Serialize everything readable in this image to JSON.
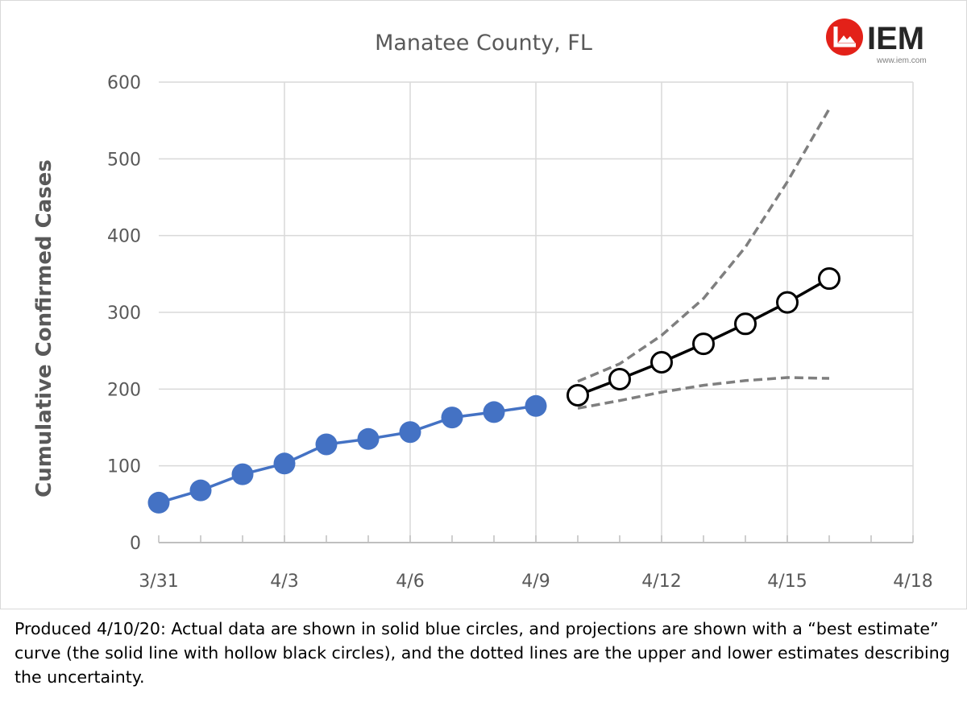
{
  "chart_data": {
    "type": "line",
    "title": "Manatee County, FL",
    "xlabel": "",
    "ylabel": "Cumulative Confirmed Cases",
    "ylim": [
      0,
      600
    ],
    "yticks": [
      "0",
      "100",
      "200",
      "300",
      "400",
      "500",
      "600"
    ],
    "xlim": [
      "3/31",
      "4/18"
    ],
    "xticks": [
      "3/31",
      "4/3",
      "4/6",
      "4/9",
      "4/12",
      "4/15",
      "4/18"
    ],
    "grid": true,
    "legend": "none",
    "series": [
      {
        "role": "actual",
        "style": "solid blue line with filled blue circles",
        "color": "#4472c4",
        "points": [
          {
            "x": "3/31",
            "y": 52
          },
          {
            "x": "4/1",
            "y": 68
          },
          {
            "x": "4/2",
            "y": 89
          },
          {
            "x": "4/3",
            "y": 103
          },
          {
            "x": "4/4",
            "y": 128
          },
          {
            "x": "4/5",
            "y": 135
          },
          {
            "x": "4/6",
            "y": 144
          },
          {
            "x": "4/7",
            "y": 163
          },
          {
            "x": "4/8",
            "y": 170
          },
          {
            "x": "4/9",
            "y": 178
          }
        ]
      },
      {
        "role": "best estimate",
        "style": "solid black line with hollow circles",
        "color": "#000000",
        "points": [
          {
            "x": "4/10",
            "y": 192
          },
          {
            "x": "4/11",
            "y": 213
          },
          {
            "x": "4/12",
            "y": 235
          },
          {
            "x": "4/13",
            "y": 259
          },
          {
            "x": "4/14",
            "y": 285
          },
          {
            "x": "4/15",
            "y": 313
          },
          {
            "x": "4/16",
            "y": 344
          }
        ]
      },
      {
        "role": "upper estimate",
        "style": "dashed gray line",
        "color": "#7f7f7f",
        "points": [
          {
            "x": "4/10",
            "y": 210
          },
          {
            "x": "4/11",
            "y": 233
          },
          {
            "x": "4/12",
            "y": 270
          },
          {
            "x": "4/13",
            "y": 318
          },
          {
            "x": "4/14",
            "y": 385
          },
          {
            "x": "4/15",
            "y": 470
          },
          {
            "x": "4/16",
            "y": 565
          }
        ]
      },
      {
        "role": "lower estimate",
        "style": "dashed gray line",
        "color": "#7f7f7f",
        "points": [
          {
            "x": "4/10",
            "y": 175
          },
          {
            "x": "4/11",
            "y": 185
          },
          {
            "x": "4/12",
            "y": 196
          },
          {
            "x": "4/13",
            "y": 205
          },
          {
            "x": "4/14",
            "y": 211
          },
          {
            "x": "4/15",
            "y": 215
          },
          {
            "x": "4/16",
            "y": 214
          }
        ]
      }
    ]
  },
  "logo": {
    "text": "IEM",
    "url": "www.iem.com",
    "color": "#e32119"
  },
  "caption": "Produced 4/10/20:  Actual data are shown in solid blue circles, and projections are shown with a “best estimate” curve (the solid line with hollow black circles), and the dotted lines are the upper and lower estimates describing the uncertainty."
}
